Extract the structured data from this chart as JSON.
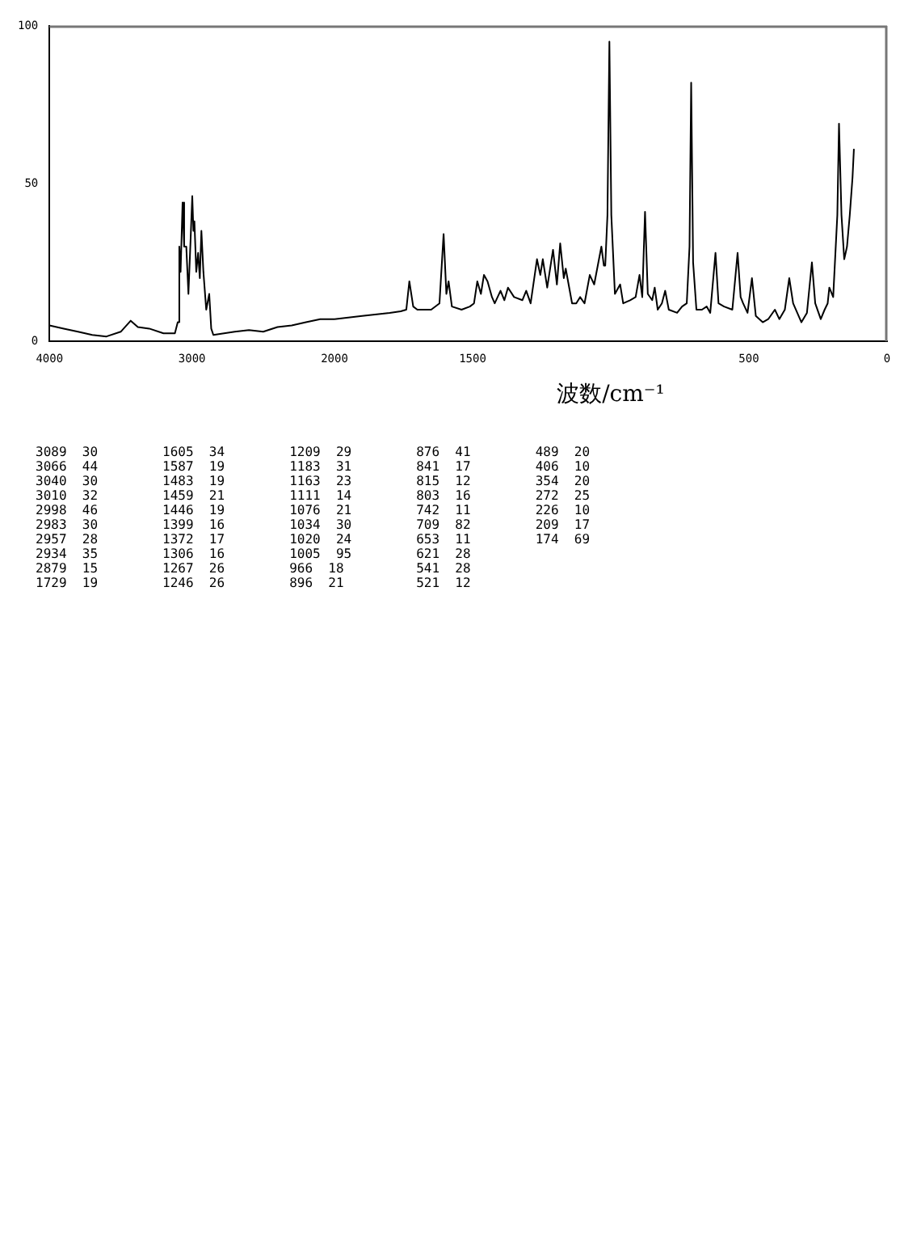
{
  "chart_data": [
    {
      "type": "line",
      "xlim": [
        4000,
        2000
      ],
      "xticks": [
        4000,
        3000
      ],
      "ylim": [
        0,
        100
      ],
      "yticks": [
        0,
        50,
        100
      ],
      "grid": false,
      "legend": false,
      "marker": "none",
      "line_style": "solid",
      "series": [
        {
          "color": "#000000",
          "x": [
            4000,
            3900,
            3800,
            3700,
            3600,
            3500,
            3430,
            3380,
            3300,
            3200,
            3120,
            3100,
            3089,
            3080,
            3066,
            3055,
            3040,
            3025,
            3010,
            2998,
            2990,
            2983,
            2970,
            2957,
            2945,
            2934,
            2920,
            2900,
            2879,
            2865,
            2850,
            2700,
            2600,
            2500,
            2400,
            2300,
            2200,
            2100,
            2000
          ],
          "values": [
            5,
            4,
            3,
            2,
            1.5,
            3,
            6.5,
            4.5,
            4,
            2.5,
            2.5,
            6,
            30,
            22,
            44,
            30,
            30,
            15,
            32,
            46,
            35,
            38,
            22,
            28,
            20,
            35,
            22,
            10,
            15,
            4,
            2,
            3,
            3.5,
            3,
            4.5,
            5,
            6,
            7,
            7
          ]
        }
      ]
    },
    {
      "type": "line",
      "xlabel": "波数/cm⁻¹",
      "xlim": [
        2000,
        0
      ],
      "xticks": [
        2000,
        1500,
        500,
        0
      ],
      "ylim": [
        0,
        100
      ],
      "yticks": [
        0,
        50,
        100
      ],
      "tick_labels": "x",
      "grid": false,
      "legend": false,
      "marker": "none",
      "line_style": "solid",
      "series": [
        {
          "color": "#000000",
          "x": [
            2000,
            1900,
            1800,
            1760,
            1740,
            1729,
            1715,
            1700,
            1650,
            1620,
            1605,
            1595,
            1587,
            1575,
            1540,
            1510,
            1495,
            1483,
            1470,
            1459,
            1446,
            1430,
            1420,
            1399,
            1385,
            1372,
            1350,
            1320,
            1306,
            1290,
            1267,
            1255,
            1246,
            1230,
            1209,
            1195,
            1183,
            1170,
            1163,
            1140,
            1125,
            1111,
            1095,
            1076,
            1060,
            1034,
            1025,
            1020,
            1012,
            1005,
            998,
            985,
            966,
            955,
            930,
            910,
            896,
            886,
            876,
            866,
            850,
            841,
            830,
            815,
            803,
            790,
            760,
            742,
            725,
            715,
            709,
            702,
            690,
            670,
            653,
            640,
            621,
            610,
            590,
            560,
            541,
            530,
            521,
            505,
            489,
            475,
            450,
            430,
            406,
            390,
            370,
            354,
            340,
            310,
            290,
            272,
            260,
            240,
            226,
            215,
            209,
            195,
            180,
            174,
            165,
            155,
            145,
            135,
            125,
            120
          ],
          "values": [
            7,
            8,
            9,
            9.5,
            10,
            19,
            11,
            10,
            10,
            12,
            34,
            15,
            19,
            11,
            10,
            11,
            12,
            19,
            15,
            21,
            19,
            14,
            12,
            16,
            13,
            17,
            14,
            13,
            16,
            12,
            26,
            21,
            26,
            17,
            29,
            18,
            31,
            20,
            23,
            12,
            12,
            14,
            12,
            21,
            18,
            30,
            24,
            24,
            40,
            95,
            40,
            15,
            18,
            12,
            13,
            14,
            21,
            14,
            41,
            15,
            13,
            17,
            10,
            12,
            16,
            10,
            9,
            11,
            12,
            30,
            82,
            25,
            10,
            10,
            11,
            9,
            28,
            12,
            11,
            10,
            28,
            14,
            12,
            9,
            20,
            8,
            6,
            7,
            10,
            7,
            10,
            20,
            12,
            6,
            9,
            25,
            12,
            7,
            10,
            12,
            17,
            14,
            40,
            69,
            40,
            26,
            30,
            40,
            52,
            61
          ]
        }
      ],
      "annotations": [
        "3089  30",
        "3066  44",
        "3040  30",
        "3010  32",
        "2998  46",
        "2983  30",
        "2957  28",
        "2934  35",
        "2879  15",
        "1729  19",
        "1605  34",
        "1587  19",
        "1483  19",
        "1459  21",
        "1446  19",
        "1399  16",
        "1372  17",
        "1306  16",
        "1267  26",
        "1246  26",
        "1209  29",
        "1183  31",
        "1163  23",
        "1111  14",
        "1076  21",
        "1034  30",
        "1020  24",
        "1005  95",
        "966  18",
        "896  21",
        "876  41",
        "841  17",
        "815  12",
        "803  16",
        "742  11",
        "709  82",
        "653  11",
        "621  28",
        "541  28",
        "521  12",
        "489  20",
        "406  10",
        "354  20",
        "272  25",
        "226  10",
        "209  17",
        "174  69"
      ]
    }
  ]
}
